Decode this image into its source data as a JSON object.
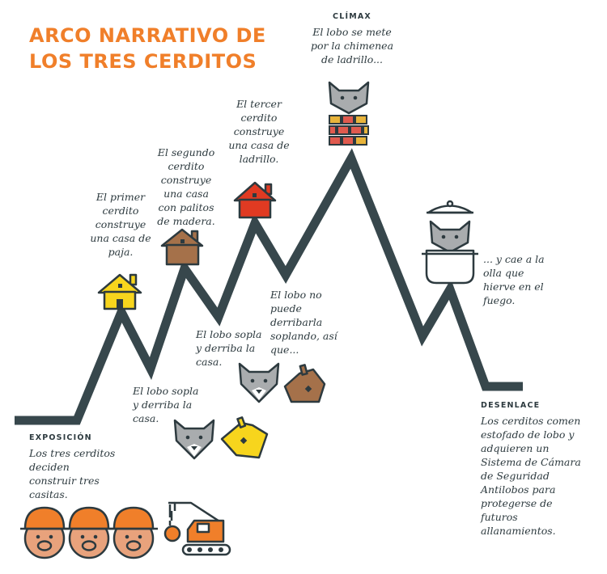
{
  "title": {
    "line1": "ARCO NARRATIVO DE",
    "line2": "LOS TRES CERDITOS"
  },
  "stages": {
    "exposicion": {
      "label": "EXPOSICIÓN",
      "text": "Los tres cerditos deciden construir tres casitas."
    },
    "primer": {
      "text": "El primer cerdito construye una casa de paja."
    },
    "sopla1": {
      "text": "El lobo sopla y derriba la casa."
    },
    "segundo": {
      "text": "El segundo cerdito construye una casa con palitos de madera."
    },
    "sopla2": {
      "text": "El lobo sopla y derriba la casa."
    },
    "tercer": {
      "text": "El tercer cerdito construye una casa de ladrillo."
    },
    "nopuede": {
      "text": "El lobo no puede derribarla soplando, así que..."
    },
    "climax": {
      "label": "CLÍMAX",
      "text": "El lobo se mete por la chimenea de ladrillo..."
    },
    "olla": {
      "text": "... y cae a la olla que hierve en el fuego."
    },
    "desenlace": {
      "label": "DESENLACE",
      "text": "Los cerditos comen estofado de lobo y adquieren un Sistema de Cámara de Seguridad Antilobos para protegerse de futuros allanamientos."
    }
  },
  "colors": {
    "title": "#f07f2a",
    "line": "#37474c",
    "straw": "#f7d51d",
    "wood": "#a5714a",
    "brick": "#e03a22",
    "wolf": "#a9acae",
    "pig": "#e8a27c",
    "helmet": "#f07f2a"
  },
  "icons": [
    "pig-icon",
    "excavator-icon",
    "straw-house-icon",
    "wood-house-icon",
    "brick-house-icon",
    "wolf-icon",
    "collapsed-house-icon",
    "chimney-icon",
    "pot-icon"
  ]
}
